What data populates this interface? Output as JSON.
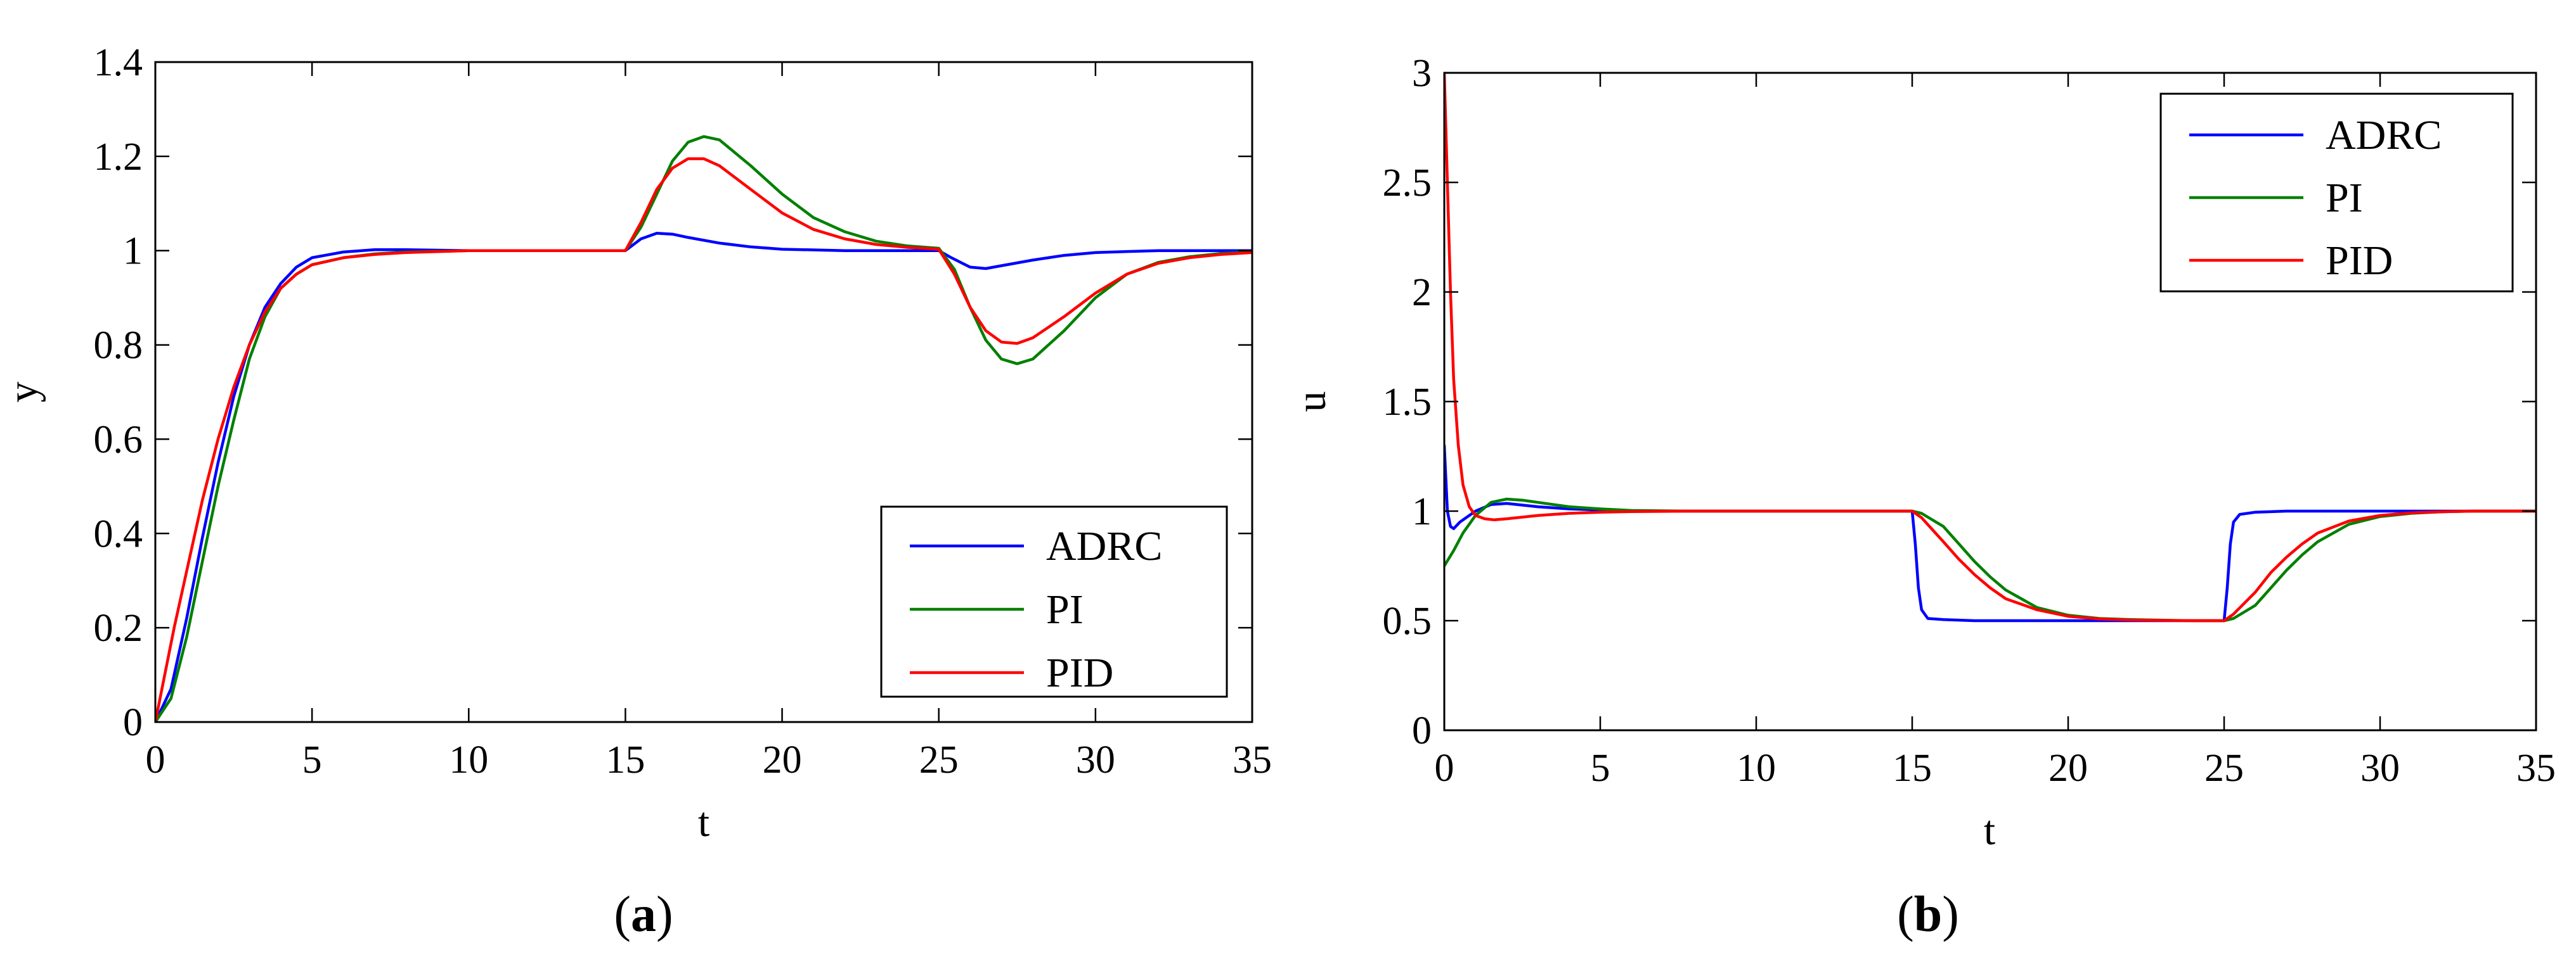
{
  "chart_data": [
    {
      "type": "line",
      "panel": "a",
      "caption": {
        "open": "(",
        "letter": "a",
        "close": ")"
      },
      "xlabel": "t",
      "ylabel": "y",
      "xlim": [
        0,
        35
      ],
      "ylim": [
        0,
        1.4
      ],
      "xticks": [
        0,
        5,
        10,
        15,
        20,
        25,
        30,
        35
      ],
      "xtick_labels": [
        "0",
        "5",
        "10",
        "15",
        "20",
        "25",
        "30",
        "35"
      ],
      "yticks": [
        0,
        0.2,
        0.4,
        0.6,
        0.8,
        1.0,
        1.2,
        1.4
      ],
      "ytick_labels": [
        "0",
        "0.2",
        "0.4",
        "0.6",
        "0.8",
        "1",
        "1.2",
        "1.4"
      ],
      "legend_position": "bottom-right",
      "series": [
        {
          "name": "ADRC",
          "color": "#0000ff",
          "points": [
            [
              0,
              0
            ],
            [
              0.5,
              0.07
            ],
            [
              1,
              0.22
            ],
            [
              1.5,
              0.39
            ],
            [
              2,
              0.55
            ],
            [
              2.5,
              0.69
            ],
            [
              3,
              0.8
            ],
            [
              3.5,
              0.88
            ],
            [
              4,
              0.93
            ],
            [
              4.5,
              0.965
            ],
            [
              5,
              0.985
            ],
            [
              6,
              0.997
            ],
            [
              7,
              1.002
            ],
            [
              8,
              1.002
            ],
            [
              10,
              1.0
            ],
            [
              15,
              1.0
            ],
            [
              15.5,
              1.025
            ],
            [
              16,
              1.037
            ],
            [
              16.5,
              1.035
            ],
            [
              17,
              1.028
            ],
            [
              18,
              1.016
            ],
            [
              19,
              1.008
            ],
            [
              20,
              1.003
            ],
            [
              22,
              1.0
            ],
            [
              25,
              1.0
            ],
            [
              25.4,
              0.985
            ],
            [
              26,
              0.965
            ],
            [
              26.5,
              0.962
            ],
            [
              27,
              0.968
            ],
            [
              28,
              0.98
            ],
            [
              29,
              0.99
            ],
            [
              30,
              0.996
            ],
            [
              32,
              1.0
            ],
            [
              35,
              1.0
            ]
          ]
        },
        {
          "name": "PI",
          "color": "#008000",
          "points": [
            [
              0,
              0
            ],
            [
              0.5,
              0.05
            ],
            [
              1,
              0.18
            ],
            [
              1.5,
              0.34
            ],
            [
              2,
              0.5
            ],
            [
              2.5,
              0.64
            ],
            [
              3,
              0.77
            ],
            [
              3.5,
              0.86
            ],
            [
              4,
              0.92
            ],
            [
              4.5,
              0.95
            ],
            [
              5,
              0.97
            ],
            [
              6,
              0.985
            ],
            [
              7,
              0.993
            ],
            [
              8,
              0.997
            ],
            [
              10,
              1.0
            ],
            [
              15,
              1.0
            ],
            [
              15.5,
              1.05
            ],
            [
              16,
              1.12
            ],
            [
              16.5,
              1.19
            ],
            [
              17,
              1.23
            ],
            [
              17.5,
              1.242
            ],
            [
              18,
              1.235
            ],
            [
              19,
              1.18
            ],
            [
              20,
              1.12
            ],
            [
              21,
              1.07
            ],
            [
              22,
              1.04
            ],
            [
              23,
              1.02
            ],
            [
              24,
              1.01
            ],
            [
              25,
              1.005
            ],
            [
              25.5,
              0.96
            ],
            [
              26,
              0.88
            ],
            [
              26.5,
              0.81
            ],
            [
              27,
              0.77
            ],
            [
              27.5,
              0.76
            ],
            [
              28,
              0.77
            ],
            [
              29,
              0.83
            ],
            [
              30,
              0.9
            ],
            [
              31,
              0.95
            ],
            [
              32,
              0.975
            ],
            [
              33,
              0.987
            ],
            [
              34,
              0.994
            ],
            [
              35,
              0.997
            ]
          ]
        },
        {
          "name": "PID",
          "color": "#ff0000",
          "points": [
            [
              0,
              0
            ],
            [
              0.3,
              0.1
            ],
            [
              0.6,
              0.2
            ],
            [
              1,
              0.32
            ],
            [
              1.5,
              0.47
            ],
            [
              2,
              0.6
            ],
            [
              2.5,
              0.71
            ],
            [
              3,
              0.8
            ],
            [
              3.5,
              0.87
            ],
            [
              4,
              0.92
            ],
            [
              4.5,
              0.95
            ],
            [
              5,
              0.97
            ],
            [
              6,
              0.985
            ],
            [
              7,
              0.992
            ],
            [
              8,
              0.996
            ],
            [
              10,
              1.0
            ],
            [
              15,
              1.0
            ],
            [
              15.5,
              1.06
            ],
            [
              16,
              1.13
            ],
            [
              16.5,
              1.175
            ],
            [
              17,
              1.195
            ],
            [
              17.5,
              1.195
            ],
            [
              18,
              1.18
            ],
            [
              19,
              1.13
            ],
            [
              20,
              1.08
            ],
            [
              21,
              1.045
            ],
            [
              22,
              1.025
            ],
            [
              23,
              1.013
            ],
            [
              24,
              1.007
            ],
            [
              25,
              1.003
            ],
            [
              25.5,
              0.95
            ],
            [
              26,
              0.88
            ],
            [
              26.5,
              0.83
            ],
            [
              27,
              0.806
            ],
            [
              27.5,
              0.803
            ],
            [
              28,
              0.815
            ],
            [
              29,
              0.86
            ],
            [
              30,
              0.91
            ],
            [
              31,
              0.95
            ],
            [
              32,
              0.973
            ],
            [
              33,
              0.985
            ],
            [
              34,
              0.992
            ],
            [
              35,
              0.996
            ]
          ]
        }
      ]
    },
    {
      "type": "line",
      "panel": "b",
      "caption": {
        "open": "(",
        "letter": "b",
        "close": ")"
      },
      "xlabel": "t",
      "ylabel": "u",
      "xlim": [
        0,
        35
      ],
      "ylim": [
        0,
        3
      ],
      "xticks": [
        0,
        5,
        10,
        15,
        20,
        25,
        30,
        35
      ],
      "xtick_labels": [
        "0",
        "5",
        "10",
        "15",
        "20",
        "25",
        "30",
        "35"
      ],
      "yticks": [
        0,
        0.5,
        1,
        1.5,
        2,
        2.5,
        3
      ],
      "ytick_labels": [
        "0",
        "0.5",
        "1",
        "1.5",
        "2",
        "2.5",
        "3"
      ],
      "legend_position": "top-right",
      "series": [
        {
          "name": "ADRC",
          "color": "#0000ff",
          "points": [
            [
              0,
              1.3
            ],
            [
              0.1,
              1.0
            ],
            [
              0.2,
              0.93
            ],
            [
              0.3,
              0.92
            ],
            [
              0.5,
              0.95
            ],
            [
              1,
              1.0
            ],
            [
              1.5,
              1.03
            ],
            [
              2,
              1.035
            ],
            [
              3,
              1.02
            ],
            [
              4,
              1.01
            ],
            [
              5,
              1.005
            ],
            [
              6,
              1.0
            ],
            [
              15,
              1.0
            ],
            [
              15.1,
              0.85
            ],
            [
              15.2,
              0.65
            ],
            [
              15.3,
              0.55
            ],
            [
              15.5,
              0.51
            ],
            [
              16,
              0.505
            ],
            [
              17,
              0.5
            ],
            [
              25,
              0.5
            ],
            [
              25.1,
              0.65
            ],
            [
              25.2,
              0.85
            ],
            [
              25.3,
              0.95
            ],
            [
              25.5,
              0.985
            ],
            [
              26,
              0.995
            ],
            [
              27,
              1.0
            ],
            [
              35,
              1.0
            ]
          ]
        },
        {
          "name": "PI",
          "color": "#008000",
          "points": [
            [
              0,
              0.75
            ],
            [
              0.3,
              0.82
            ],
            [
              0.6,
              0.9
            ],
            [
              1,
              0.98
            ],
            [
              1.5,
              1.04
            ],
            [
              2,
              1.055
            ],
            [
              2.5,
              1.05
            ],
            [
              3,
              1.04
            ],
            [
              4,
              1.02
            ],
            [
              5,
              1.01
            ],
            [
              6,
              1.003
            ],
            [
              8,
              1.0
            ],
            [
              15,
              1.0
            ],
            [
              15.3,
              0.99
            ],
            [
              16,
              0.93
            ],
            [
              16.5,
              0.85
            ],
            [
              17,
              0.77
            ],
            [
              17.5,
              0.7
            ],
            [
              18,
              0.64
            ],
            [
              19,
              0.56
            ],
            [
              20,
              0.525
            ],
            [
              21,
              0.51
            ],
            [
              22,
              0.505
            ],
            [
              24,
              0.5
            ],
            [
              25,
              0.5
            ],
            [
              25.3,
              0.51
            ],
            [
              26,
              0.57
            ],
            [
              26.5,
              0.65
            ],
            [
              27,
              0.73
            ],
            [
              27.5,
              0.8
            ],
            [
              28,
              0.86
            ],
            [
              29,
              0.94
            ],
            [
              30,
              0.975
            ],
            [
              31,
              0.99
            ],
            [
              32,
              0.997
            ],
            [
              33,
              1.0
            ],
            [
              35,
              1.0
            ]
          ]
        },
        {
          "name": "PID",
          "color": "#ff0000",
          "points": [
            [
              0,
              3.0
            ],
            [
              0.1,
              2.5
            ],
            [
              0.2,
              2.0
            ],
            [
              0.3,
              1.6
            ],
            [
              0.45,
              1.3
            ],
            [
              0.6,
              1.12
            ],
            [
              0.8,
              1.02
            ],
            [
              1,
              0.98
            ],
            [
              1.3,
              0.965
            ],
            [
              1.6,
              0.96
            ],
            [
              2,
              0.965
            ],
            [
              3,
              0.98
            ],
            [
              4,
              0.99
            ],
            [
              5,
              0.995
            ],
            [
              6,
              0.998
            ],
            [
              8,
              1.0
            ],
            [
              15,
              1.0
            ],
            [
              15.3,
              0.97
            ],
            [
              16,
              0.86
            ],
            [
              16.5,
              0.78
            ],
            [
              17,
              0.71
            ],
            [
              17.5,
              0.65
            ],
            [
              18,
              0.6
            ],
            [
              19,
              0.55
            ],
            [
              20,
              0.52
            ],
            [
              21,
              0.508
            ],
            [
              22,
              0.503
            ],
            [
              24,
              0.5
            ],
            [
              25,
              0.5
            ],
            [
              25.3,
              0.53
            ],
            [
              26,
              0.63
            ],
            [
              26.5,
              0.72
            ],
            [
              27,
              0.79
            ],
            [
              27.5,
              0.85
            ],
            [
              28,
              0.9
            ],
            [
              29,
              0.955
            ],
            [
              30,
              0.98
            ],
            [
              31,
              0.992
            ],
            [
              32,
              0.997
            ],
            [
              33,
              1.0
            ],
            [
              35,
              1.0
            ]
          ]
        }
      ]
    }
  ]
}
